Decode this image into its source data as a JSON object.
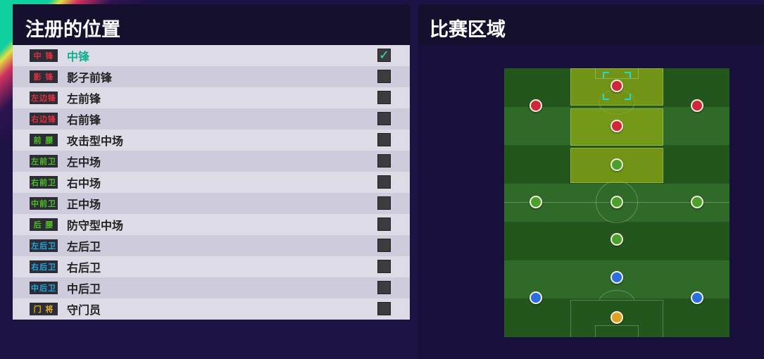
{
  "left_panel": {
    "title": "注册的位置"
  },
  "right_panel": {
    "title": "比赛区域"
  },
  "positions": [
    {
      "badge": "中 锋",
      "label": "中锋",
      "badge_color": "#e03040",
      "checked": true
    },
    {
      "badge": "影 锋",
      "label": "影子前锋",
      "badge_color": "#e03040",
      "checked": false
    },
    {
      "badge": "左边锋",
      "label": "左前锋",
      "badge_color": "#e03040",
      "checked": false
    },
    {
      "badge": "右边锋",
      "label": "右前锋",
      "badge_color": "#e03040",
      "checked": false
    },
    {
      "badge": "前 腰",
      "label": "攻击型中场",
      "badge_color": "#4cc020",
      "checked": false
    },
    {
      "badge": "左前卫",
      "label": "左中场",
      "badge_color": "#4cc020",
      "checked": false
    },
    {
      "badge": "右前卫",
      "label": "右中场",
      "badge_color": "#4cc020",
      "checked": false
    },
    {
      "badge": "中前卫",
      "label": "正中场",
      "badge_color": "#4cc020",
      "checked": false
    },
    {
      "badge": "后 腰",
      "label": "防守型中场",
      "badge_color": "#4cc020",
      "checked": false
    },
    {
      "badge": "左后卫",
      "label": "左后卫",
      "badge_color": "#20a8e0",
      "checked": false
    },
    {
      "badge": "右后卫",
      "label": "右后卫",
      "badge_color": "#20a8e0",
      "checked": false
    },
    {
      "badge": "中后卫",
      "label": "中后卫",
      "badge_color": "#20a8e0",
      "checked": false
    },
    {
      "badge": "门 将",
      "label": "守门员",
      "badge_color": "#e0b020",
      "checked": false
    }
  ],
  "colors": {
    "forward": "#d0283a",
    "midfield": "#4aa02a",
    "defense": "#2a6ee0",
    "goalkeeper": "#e0a020",
    "selected": "#12b090"
  },
  "pitch_markers": [
    {
      "position": "中锋",
      "group": "forward",
      "selected": true
    },
    {
      "position": "左前锋",
      "group": "forward"
    },
    {
      "position": "右前锋",
      "group": "forward"
    },
    {
      "position": "影子前锋",
      "group": "forward"
    },
    {
      "position": "攻击型中场",
      "group": "midfield"
    },
    {
      "position": "左中场",
      "group": "midfield"
    },
    {
      "position": "正中场",
      "group": "midfield"
    },
    {
      "position": "右中场",
      "group": "midfield"
    },
    {
      "position": "防守型中场",
      "group": "midfield"
    },
    {
      "position": "中后卫",
      "group": "defense"
    },
    {
      "position": "左后卫",
      "group": "defense"
    },
    {
      "position": "右后卫",
      "group": "defense"
    },
    {
      "position": "守门员",
      "group": "goalkeeper"
    }
  ]
}
